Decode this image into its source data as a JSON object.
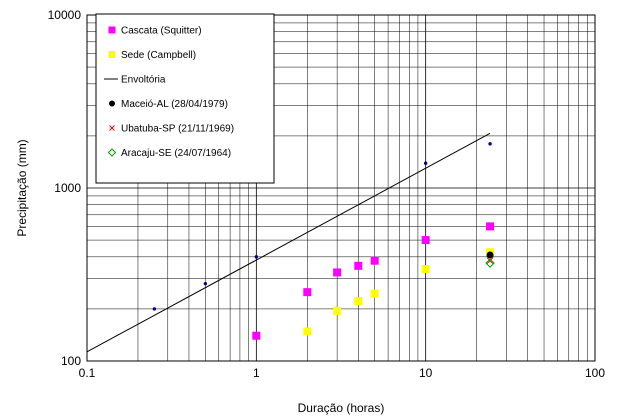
{
  "chart_data": {
    "type": "scatter",
    "title": "",
    "xlabel": "Duração (horas)",
    "ylabel": "Precipitação (mm)",
    "xscale": "log",
    "yscale": "log",
    "xlim": [
      0.1,
      100
    ],
    "ylim": [
      100,
      10000
    ],
    "x_ticks": [
      0.1,
      1,
      10,
      100
    ],
    "x_tick_labels": [
      "0.1",
      "1",
      "10",
      "100"
    ],
    "y_ticks": [
      100,
      1000,
      10000
    ],
    "y_tick_labels": [
      "100",
      "1000",
      "10000"
    ],
    "grid": "major and minor",
    "legend_position": "top-left",
    "series": [
      {
        "name": "Cascata (Squitter)",
        "marker": "square",
        "color": "#ff00ff",
        "points": [
          [
            1,
            140
          ],
          [
            2,
            250
          ],
          [
            3,
            325
          ],
          [
            4,
            355
          ],
          [
            5,
            380
          ],
          [
            10,
            500
          ],
          [
            24,
            600
          ]
        ]
      },
      {
        "name": "Sede (Campbell)",
        "marker": "square",
        "color": "#ffff00",
        "points": [
          [
            2,
            148
          ],
          [
            3,
            195
          ],
          [
            4,
            222
          ],
          [
            5,
            245
          ],
          [
            10,
            340
          ],
          [
            24,
            425
          ]
        ]
      },
      {
        "name": "Envoltória",
        "marker": "line",
        "color": "#000000",
        "points": [
          [
            0.1,
            113
          ],
          [
            24,
            2070
          ]
        ]
      },
      {
        "name": "Maceió-AL (28/04/1979)",
        "marker": "circle",
        "color": "#000000",
        "points": [
          [
            24,
            410
          ]
        ]
      },
      {
        "name": "Ubatuba-SP (21/11/1969)",
        "marker": "cross",
        "color": "#ff0000",
        "points": [
          [
            24,
            380
          ]
        ]
      },
      {
        "name": "Aracaju-SE (24/07/1964)",
        "marker": "diamond",
        "color": "#00a000",
        "points": [
          [
            24,
            368
          ]
        ]
      },
      {
        "name": "",
        "marker": "dot",
        "color": "#000080",
        "points": [
          [
            0.25,
            200
          ],
          [
            0.5,
            280
          ],
          [
            1,
            400
          ],
          [
            10,
            1390
          ],
          [
            24,
            1800
          ]
        ]
      }
    ]
  }
}
